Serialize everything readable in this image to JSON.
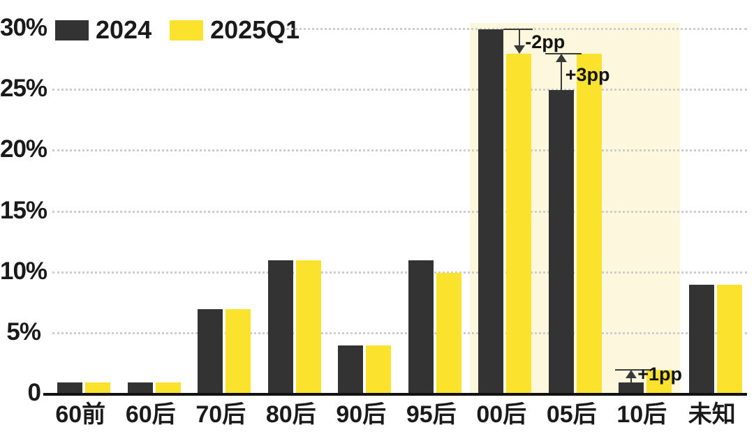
{
  "legend": {
    "items": [
      {
        "label": "2024",
        "color": "#333333"
      },
      {
        "label": "2025Q1",
        "color": "#FBE22D"
      }
    ]
  },
  "y_axis": {
    "tick_labels": [
      "30%",
      "25%",
      "20%",
      "15%",
      "10%",
      "5%",
      "0"
    ],
    "tick_values": [
      30,
      25,
      20,
      15,
      10,
      5,
      0
    ]
  },
  "chart_data": {
    "type": "bar",
    "title": "",
    "xlabel": "",
    "ylabel": "",
    "categories": [
      "60前",
      "60后",
      "70后",
      "80后",
      "90后",
      "95后",
      "00后",
      "05后",
      "10后",
      "未知"
    ],
    "series": [
      {
        "name": "2024",
        "color": "#333333",
        "values": [
          1,
          1,
          7,
          11,
          4,
          11,
          30,
          25,
          1,
          9
        ]
      },
      {
        "name": "2025Q1",
        "color": "#FBE22D",
        "values": [
          1,
          1,
          7,
          11,
          4,
          10,
          28,
          28,
          2,
          9
        ]
      }
    ],
    "ylim": [
      0,
      30
    ],
    "yticks": [
      0,
      5,
      10,
      15,
      20,
      25,
      30
    ],
    "grid": true,
    "legend_position": "top-left",
    "highlight": {
      "categories": [
        "00后",
        "05后",
        "10后"
      ],
      "color": "#FDF8DD"
    },
    "annotations": [
      {
        "category": "00后",
        "label": "-2pp",
        "direction": "down"
      },
      {
        "category": "05后",
        "label": "+3pp",
        "direction": "up"
      },
      {
        "category": "10后",
        "label": "+1pp",
        "direction": "up"
      }
    ]
  },
  "colors": {
    "bar_2024": "#333333",
    "bar_2025q1": "#FBE22D",
    "highlight_band": "#FDF8DD",
    "gridline": "#CDCDCD",
    "axis": "#111111",
    "text": "#1A1A1A",
    "annotation": "#3A3A3A",
    "background": "#FFFFFF"
  }
}
